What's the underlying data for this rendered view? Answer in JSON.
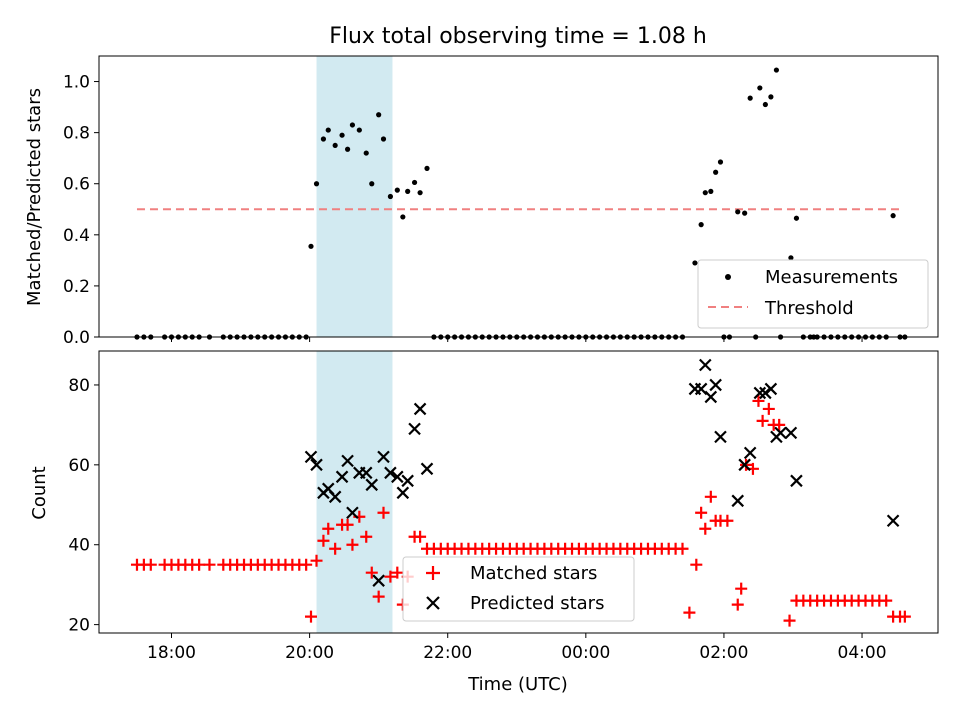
{
  "chart_data": [
    {
      "type": "scatter",
      "title": "Flux total observing time = 1.08 h",
      "xlabel": "",
      "ylabel": "Matched/Predicted stars",
      "xlim_hours": [
        16.95,
        29.1
      ],
      "ylim": [
        0,
        1.1
      ],
      "yticks": [
        0.0,
        0.2,
        0.4,
        0.6,
        0.8,
        1.0
      ],
      "ytick_labels": [
        "0.0",
        "0.2",
        "0.4",
        "0.6",
        "0.8",
        "1.0"
      ],
      "xticks_hours": [
        18,
        20,
        22,
        24,
        26,
        28
      ],
      "grid": false,
      "legend": "lower-right",
      "shaded_interval_hours": [
        20.1,
        21.2
      ],
      "threshold": {
        "name": "Threshold",
        "value": 0.5,
        "color": "#f08080",
        "x_hours": [
          17.5,
          28.6
        ]
      },
      "series": [
        {
          "name": "Measurements",
          "color": "#000000",
          "points": [
            [
              17.5,
              0
            ],
            [
              17.6,
              0
            ],
            [
              17.7,
              0
            ],
            [
              17.9,
              0
            ],
            [
              18.0,
              0
            ],
            [
              18.1,
              0
            ],
            [
              18.2,
              0
            ],
            [
              18.3,
              0
            ],
            [
              18.4,
              0
            ],
            [
              18.55,
              0
            ],
            [
              18.75,
              0
            ],
            [
              18.85,
              0
            ],
            [
              18.95,
              0
            ],
            [
              19.05,
              0
            ],
            [
              19.15,
              0
            ],
            [
              19.25,
              0
            ],
            [
              19.35,
              0
            ],
            [
              19.45,
              0
            ],
            [
              19.55,
              0
            ],
            [
              19.65,
              0
            ],
            [
              19.75,
              0
            ],
            [
              19.85,
              0
            ],
            [
              19.95,
              0
            ],
            [
              20.02,
              0.355
            ],
            [
              20.1,
              0.6
            ],
            [
              20.2,
              0.775
            ],
            [
              20.27,
              0.81
            ],
            [
              20.37,
              0.75
            ],
            [
              20.47,
              0.79
            ],
            [
              20.55,
              0.735
            ],
            [
              20.62,
              0.83
            ],
            [
              20.72,
              0.81
            ],
            [
              20.82,
              0.72
            ],
            [
              20.9,
              0.6
            ],
            [
              21.0,
              0.87
            ],
            [
              21.07,
              0.775
            ],
            [
              21.17,
              0.55
            ],
            [
              21.27,
              0.575
            ],
            [
              21.35,
              0.47
            ],
            [
              21.42,
              0.57
            ],
            [
              21.52,
              0.605
            ],
            [
              21.6,
              0.565
            ],
            [
              21.7,
              0.66
            ],
            [
              21.8,
              0
            ],
            [
              21.9,
              0
            ],
            [
              22.0,
              0
            ],
            [
              22.1,
              0
            ],
            [
              22.2,
              0
            ],
            [
              22.3,
              0
            ],
            [
              22.4,
              0
            ],
            [
              22.5,
              0
            ],
            [
              22.6,
              0
            ],
            [
              22.7,
              0
            ],
            [
              22.8,
              0
            ],
            [
              22.9,
              0
            ],
            [
              23.0,
              0
            ],
            [
              23.1,
              0
            ],
            [
              23.2,
              0
            ],
            [
              23.3,
              0
            ],
            [
              23.4,
              0
            ],
            [
              23.5,
              0
            ],
            [
              23.6,
              0
            ],
            [
              23.7,
              0
            ],
            [
              23.8,
              0
            ],
            [
              23.9,
              0
            ],
            [
              24.0,
              0
            ],
            [
              24.1,
              0
            ],
            [
              24.2,
              0
            ],
            [
              24.3,
              0
            ],
            [
              24.4,
              0
            ],
            [
              24.5,
              0
            ],
            [
              24.6,
              0
            ],
            [
              24.7,
              0
            ],
            [
              24.8,
              0
            ],
            [
              24.9,
              0
            ],
            [
              25.0,
              0
            ],
            [
              25.1,
              0
            ],
            [
              25.2,
              0
            ],
            [
              25.3,
              0
            ],
            [
              25.4,
              0
            ],
            [
              25.58,
              0.29
            ],
            [
              25.67,
              0.44
            ],
            [
              25.73,
              0.565
            ],
            [
              25.81,
              0.57
            ],
            [
              25.88,
              0.645
            ],
            [
              25.95,
              0.685
            ],
            [
              26.0,
              0
            ],
            [
              26.08,
              0
            ],
            [
              26.2,
              0.49
            ],
            [
              26.3,
              0.485
            ],
            [
              26.38,
              0.935
            ],
            [
              26.46,
              0
            ],
            [
              26.52,
              0.975
            ],
            [
              26.6,
              0.91
            ],
            [
              26.68,
              0.94
            ],
            [
              26.76,
              1.045
            ],
            [
              26.82,
              0
            ],
            [
              26.97,
              0.31
            ],
            [
              27.05,
              0.465
            ],
            [
              27.15,
              0
            ],
            [
              27.25,
              0
            ],
            [
              27.3,
              0
            ],
            [
              27.35,
              0
            ],
            [
              27.45,
              0
            ],
            [
              27.55,
              0
            ],
            [
              27.65,
              0
            ],
            [
              27.75,
              0
            ],
            [
              27.85,
              0
            ],
            [
              27.95,
              0
            ],
            [
              28.05,
              0
            ],
            [
              28.15,
              0
            ],
            [
              28.25,
              0
            ],
            [
              28.35,
              0
            ],
            [
              28.45,
              0.475
            ],
            [
              28.55,
              0
            ],
            [
              28.62,
              0
            ]
          ]
        }
      ]
    },
    {
      "type": "scatter",
      "title": "",
      "xlabel": "Time (UTC)",
      "ylabel": "Count",
      "xlim_hours": [
        16.95,
        29.1
      ],
      "ylim": [
        17.9,
        88.5
      ],
      "yticks": [
        20,
        40,
        60,
        80
      ],
      "ytick_labels": [
        "20",
        "40",
        "60",
        "80"
      ],
      "xticks_hours": [
        18,
        20,
        22,
        24,
        26,
        28
      ],
      "xtick_labels": [
        "18:00",
        "20:00",
        "22:00",
        "00:00",
        "02:00",
        "04:00"
      ],
      "grid": false,
      "legend": "lower-center",
      "shaded_interval_hours": [
        20.1,
        21.2
      ],
      "series": [
        {
          "name": "Matched stars",
          "marker": "+",
          "color": "#ff0000",
          "points": [
            [
              17.5,
              35
            ],
            [
              17.6,
              35
            ],
            [
              17.7,
              35
            ],
            [
              17.9,
              35
            ],
            [
              18.0,
              35
            ],
            [
              18.1,
              35
            ],
            [
              18.2,
              35
            ],
            [
              18.3,
              35
            ],
            [
              18.4,
              35
            ],
            [
              18.55,
              35
            ],
            [
              18.75,
              35
            ],
            [
              18.85,
              35
            ],
            [
              18.95,
              35
            ],
            [
              19.05,
              35
            ],
            [
              19.15,
              35
            ],
            [
              19.25,
              35
            ],
            [
              19.35,
              35
            ],
            [
              19.45,
              35
            ],
            [
              19.55,
              35
            ],
            [
              19.65,
              35
            ],
            [
              19.75,
              35
            ],
            [
              19.85,
              35
            ],
            [
              19.95,
              35
            ],
            [
              20.02,
              22
            ],
            [
              20.1,
              36
            ],
            [
              20.2,
              41
            ],
            [
              20.27,
              44
            ],
            [
              20.37,
              39
            ],
            [
              20.47,
              45
            ],
            [
              20.55,
              45
            ],
            [
              20.62,
              40
            ],
            [
              20.72,
              47
            ],
            [
              20.82,
              42
            ],
            [
              20.9,
              33
            ],
            [
              21.0,
              27
            ],
            [
              21.07,
              48
            ],
            [
              21.17,
              32
            ],
            [
              21.27,
              33
            ],
            [
              21.35,
              25
            ],
            [
              21.42,
              32
            ],
            [
              21.52,
              42
            ],
            [
              21.6,
              42
            ],
            [
              21.7,
              39
            ],
            [
              21.8,
              39
            ],
            [
              21.9,
              39
            ],
            [
              22.0,
              39
            ],
            [
              22.1,
              39
            ],
            [
              22.2,
              39
            ],
            [
              22.3,
              39
            ],
            [
              22.4,
              39
            ],
            [
              22.5,
              39
            ],
            [
              22.6,
              39
            ],
            [
              22.7,
              39
            ],
            [
              22.8,
              39
            ],
            [
              22.9,
              39
            ],
            [
              23.0,
              39
            ],
            [
              23.1,
              39
            ],
            [
              23.2,
              39
            ],
            [
              23.3,
              39
            ],
            [
              23.4,
              39
            ],
            [
              23.5,
              39
            ],
            [
              23.6,
              39
            ],
            [
              23.7,
              39
            ],
            [
              23.8,
              39
            ],
            [
              23.9,
              39
            ],
            [
              24.0,
              39
            ],
            [
              24.1,
              39
            ],
            [
              24.2,
              39
            ],
            [
              24.3,
              39
            ],
            [
              24.4,
              39
            ],
            [
              24.5,
              39
            ],
            [
              24.6,
              39
            ],
            [
              24.7,
              39
            ],
            [
              24.8,
              39
            ],
            [
              24.9,
              39
            ],
            [
              25.0,
              39
            ],
            [
              25.1,
              39
            ],
            [
              25.2,
              39
            ],
            [
              25.3,
              39
            ],
            [
              25.4,
              39
            ],
            [
              25.5,
              23
            ],
            [
              25.6,
              35
            ],
            [
              25.67,
              48
            ],
            [
              25.73,
              44
            ],
            [
              25.81,
              52
            ],
            [
              25.88,
              46
            ],
            [
              25.95,
              46
            ],
            [
              26.05,
              46
            ],
            [
              26.2,
              25
            ],
            [
              26.25,
              29
            ],
            [
              26.32,
              60
            ],
            [
              26.42,
              59
            ],
            [
              26.5,
              76
            ],
            [
              26.56,
              71
            ],
            [
              26.65,
              74
            ],
            [
              26.72,
              70
            ],
            [
              26.8,
              70
            ],
            [
              26.95,
              21
            ],
            [
              27.05,
              26
            ],
            [
              27.15,
              26
            ],
            [
              27.25,
              26
            ],
            [
              27.35,
              26
            ],
            [
              27.45,
              26
            ],
            [
              27.55,
              26
            ],
            [
              27.65,
              26
            ],
            [
              27.75,
              26
            ],
            [
              27.85,
              26
            ],
            [
              27.95,
              26
            ],
            [
              28.05,
              26
            ],
            [
              28.15,
              26
            ],
            [
              28.25,
              26
            ],
            [
              28.35,
              26
            ],
            [
              28.45,
              22
            ],
            [
              28.55,
              22
            ],
            [
              28.62,
              22
            ]
          ]
        },
        {
          "name": "Predicted stars",
          "marker": "x",
          "color": "#000000",
          "points": [
            [
              20.02,
              62
            ],
            [
              20.1,
              60
            ],
            [
              20.2,
              53
            ],
            [
              20.27,
              54
            ],
            [
              20.37,
              52
            ],
            [
              20.47,
              57
            ],
            [
              20.55,
              61
            ],
            [
              20.62,
              48
            ],
            [
              20.72,
              58
            ],
            [
              20.82,
              58
            ],
            [
              20.9,
              55
            ],
            [
              21.0,
              31
            ],
            [
              21.07,
              62
            ],
            [
              21.17,
              58
            ],
            [
              21.27,
              57
            ],
            [
              21.35,
              53
            ],
            [
              21.42,
              56
            ],
            [
              21.52,
              69
            ],
            [
              21.6,
              74
            ],
            [
              21.7,
              59
            ],
            [
              25.58,
              79
            ],
            [
              25.67,
              79
            ],
            [
              25.73,
              85
            ],
            [
              25.81,
              77
            ],
            [
              25.88,
              80
            ],
            [
              25.95,
              67
            ],
            [
              26.2,
              51
            ],
            [
              26.3,
              60
            ],
            [
              26.38,
              63
            ],
            [
              26.52,
              78
            ],
            [
              26.6,
              78
            ],
            [
              26.68,
              79
            ],
            [
              26.76,
              67
            ],
            [
              26.82,
              68
            ],
            [
              26.97,
              68
            ],
            [
              27.05,
              56
            ],
            [
              28.45,
              46
            ]
          ]
        }
      ]
    }
  ]
}
